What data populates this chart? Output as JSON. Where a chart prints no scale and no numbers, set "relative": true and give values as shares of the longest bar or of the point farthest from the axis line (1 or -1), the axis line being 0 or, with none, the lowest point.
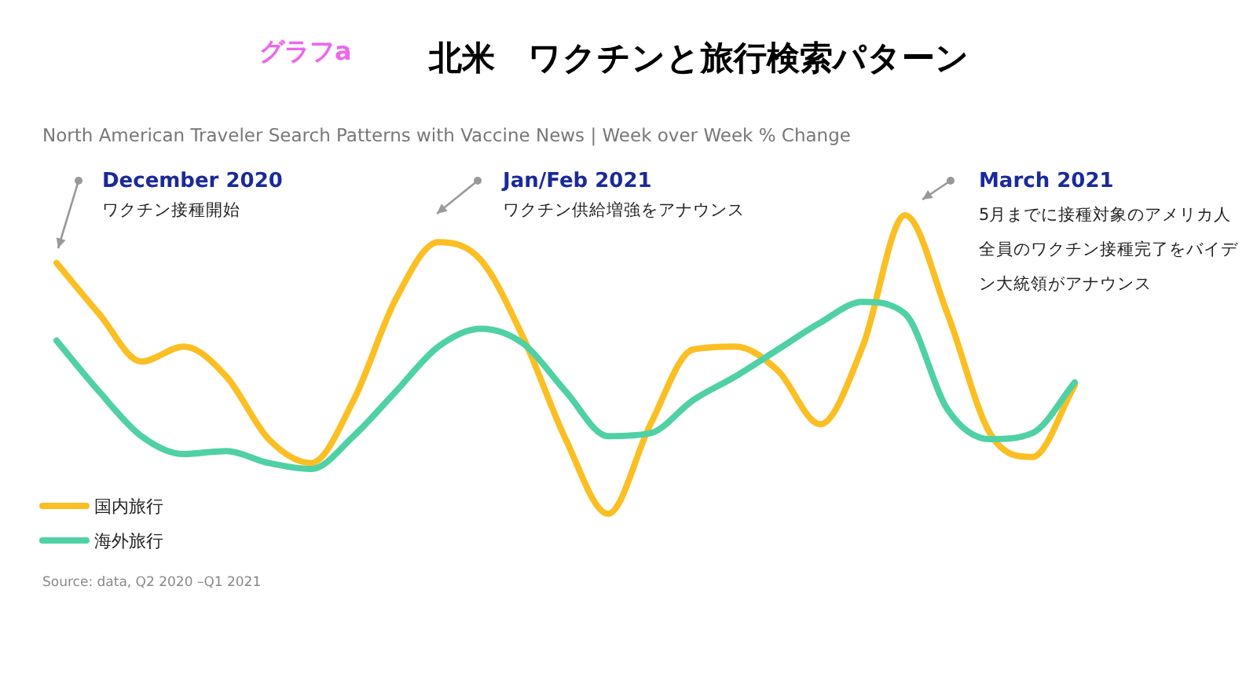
{
  "chart_data": {
    "type": "line",
    "relative": true,
    "title": "北米　ワクチンと旅行検索パターン",
    "subtitle": "North American Traveler Search Patterns with Vaccine News | Week over Week % Change",
    "categories": [
      null,
      null,
      null,
      null,
      null,
      null,
      null,
      null,
      null,
      null,
      null,
      null,
      null,
      null,
      null,
      null,
      null,
      null,
      null,
      null,
      null,
      null,
      null,
      null,
      null
    ],
    "series": [
      {
        "name": "国内旅行",
        "color": "#fbbf24",
        "values": [
          0.84,
          0.67,
          0.51,
          0.56,
          0.46,
          0.25,
          0.17,
          0.38,
          0.72,
          0.91,
          0.85,
          0.59,
          0.25,
          0,
          0.3,
          0.55,
          0.56,
          0.48,
          0.3,
          0.56,
          1,
          0.67,
          0.27,
          0.19,
          0.43
        ]
      },
      {
        "name": "海外旅行",
        "color": "#4fd1a5",
        "values": [
          0.58,
          0.41,
          0.26,
          0.2,
          0.21,
          0.17,
          0.15,
          0.26,
          0.41,
          0.56,
          0.62,
          0.57,
          0.41,
          0.26,
          0.27,
          0.38,
          0.46,
          0.55,
          0.64,
          0.71,
          0.67,
          0.35,
          0.25,
          0.27,
          0.44
        ]
      }
    ],
    "legend": "bottom left",
    "marker": "none",
    "line_style": "solid",
    "annotations": [
      "グラフa",
      "December 2020",
      "ワクチン接種開始",
      "Jan/Feb 2021",
      "ワクチン供給増強をアナウンス",
      "March 2021",
      "5月までに接種対象のアメリカ人",
      "全員のワクチン接種完了をバイデ",
      "ン大統領がアナウンス",
      "Source: data, Q2 2020 –Q1 2021"
    ]
  }
}
